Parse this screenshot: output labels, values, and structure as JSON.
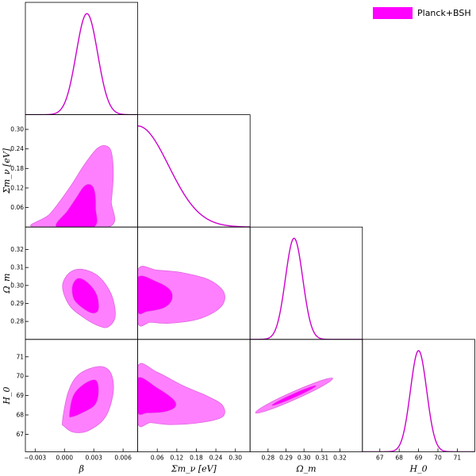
{
  "chart_data": {
    "type": "triangle-corner-plot",
    "legend": {
      "label": "Planck+BSH",
      "color": "#ff00ff",
      "placement": "top-right"
    },
    "colors": {
      "line": "#cc00cc",
      "outer_fill": "#ff80ff",
      "inner_fill": "#ff00ff",
      "edge": "#dd66dd"
    },
    "parameters": [
      {
        "key": "beta",
        "label": "β",
        "range": [
          -0.004,
          0.0075
        ],
        "ticks": [
          -0.003,
          0.0,
          0.003,
          0.006
        ],
        "tick_labels": [
          "−0.003",
          "0.000",
          "0.003",
          "0.006"
        ]
      },
      {
        "key": "sum_mnu",
        "label": "Σm_ν [eV]",
        "range": [
          0.0,
          0.345
        ],
        "ticks": [
          0.06,
          0.12,
          0.18,
          0.24,
          0.3
        ],
        "tick_labels": [
          "0.06",
          "0.12",
          "0.18",
          "0.24",
          "0.30"
        ]
      },
      {
        "key": "omega_m",
        "label": "Ω_m",
        "range": [
          0.27,
          0.3325
        ],
        "ticks": [
          0.28,
          0.29,
          0.3,
          0.31,
          0.32
        ],
        "tick_labels": [
          "0.28",
          "0.29",
          "0.30",
          "0.31",
          "0.32"
        ]
      },
      {
        "key": "H0",
        "label": "H_0",
        "range": [
          66.1,
          71.9
        ],
        "ticks": [
          67,
          68,
          69,
          70,
          71
        ],
        "tick_labels": [
          "67",
          "68",
          "69",
          "70",
          "71"
        ]
      }
    ],
    "marginals": [
      {
        "key": "beta",
        "type": "gaussian",
        "mean": 0.0023,
        "sigma": 0.0011
      },
      {
        "key": "sum_mnu",
        "type": "half-gaussian",
        "mean": 0.0,
        "sigma": 0.095
      },
      {
        "key": "omega_m",
        "type": "gaussian",
        "mean": 0.2945,
        "sigma": 0.0048
      },
      {
        "key": "H0",
        "type": "gaussian",
        "mean": 69.0,
        "sigma": 0.42
      }
    ],
    "contours_2d": [
      {
        "x": "beta",
        "y": "sum_mnu",
        "outer": [
          [
            -0.0032,
            0.0
          ],
          [
            -0.0015,
            0.04
          ],
          [
            0.0005,
            0.12
          ],
          [
            0.002,
            0.19
          ],
          [
            0.0033,
            0.24
          ],
          [
            0.0042,
            0.25
          ],
          [
            0.0048,
            0.23
          ],
          [
            0.005,
            0.16
          ],
          [
            0.0048,
            0.08
          ],
          [
            0.0045,
            0.0
          ]
        ],
        "inner": [
          [
            -0.0008,
            0.0
          ],
          [
            0.0003,
            0.05
          ],
          [
            0.0012,
            0.09
          ],
          [
            0.002,
            0.125
          ],
          [
            0.0027,
            0.13
          ],
          [
            0.0031,
            0.11
          ],
          [
            0.0032,
            0.06
          ],
          [
            0.003,
            0.0
          ]
        ]
      },
      {
        "x": "beta",
        "y": "omega_m",
        "outer": [
          [
            -0.0002,
            0.2995
          ],
          [
            0.0005,
            0.307
          ],
          [
            0.0018,
            0.309
          ],
          [
            0.0035,
            0.305
          ],
          [
            0.0048,
            0.295
          ],
          [
            0.0052,
            0.283
          ],
          [
            0.0045,
            0.277
          ],
          [
            0.0035,
            0.2775
          ],
          [
            0.002,
            0.282
          ],
          [
            0.0005,
            0.289
          ]
        ],
        "inner": [
          [
            0.0008,
            0.2995
          ],
          [
            0.0014,
            0.304
          ],
          [
            0.0024,
            0.3015
          ],
          [
            0.0033,
            0.295
          ],
          [
            0.0035,
            0.287
          ],
          [
            0.003,
            0.2845
          ],
          [
            0.0021,
            0.2865
          ],
          [
            0.001,
            0.292
          ]
        ]
      },
      {
        "x": "beta",
        "y": "H0",
        "outer": [
          [
            -0.0002,
            67.7
          ],
          [
            0.0004,
            69.2
          ],
          [
            0.0015,
            70.1
          ],
          [
            0.0035,
            70.5
          ],
          [
            0.0047,
            70.2
          ],
          [
            0.005,
            69.2
          ],
          [
            0.0042,
            67.9
          ],
          [
            0.0025,
            67.2
          ],
          [
            0.001,
            67.1
          ],
          [
            0.0,
            67.4
          ]
        ],
        "inner": [
          [
            0.0005,
            68.0
          ],
          [
            0.0009,
            69.0
          ],
          [
            0.002,
            69.6
          ],
          [
            0.0032,
            69.8
          ],
          [
            0.0035,
            69.2
          ],
          [
            0.0031,
            68.5
          ],
          [
            0.0018,
            68.1
          ],
          [
            0.0008,
            67.9
          ]
        ]
      },
      {
        "x": "sum_mnu",
        "y": "omega_m",
        "outer": [
          [
            0.0,
            0.3085
          ],
          [
            0.06,
            0.3085
          ],
          [
            0.14,
            0.307
          ],
          [
            0.22,
            0.303
          ],
          [
            0.265,
            0.296
          ],
          [
            0.255,
            0.288
          ],
          [
            0.19,
            0.2815
          ],
          [
            0.1,
            0.279
          ],
          [
            0.04,
            0.2795
          ],
          [
            0.0,
            0.2795
          ]
        ],
        "inner": [
          [
            0.0,
            0.3045
          ],
          [
            0.06,
            0.302
          ],
          [
            0.1,
            0.2975
          ],
          [
            0.105,
            0.292
          ],
          [
            0.08,
            0.2875
          ],
          [
            0.03,
            0.2855
          ],
          [
            0.0,
            0.2855
          ]
        ]
      },
      {
        "x": "sum_mnu",
        "y": "H0",
        "outer": [
          [
            0.0,
            70.5
          ],
          [
            0.06,
            70.2
          ],
          [
            0.14,
            69.5
          ],
          [
            0.21,
            69.0
          ],
          [
            0.26,
            68.5
          ],
          [
            0.26,
            67.9
          ],
          [
            0.19,
            67.6
          ],
          [
            0.1,
            67.5
          ],
          [
            0.04,
            67.6
          ],
          [
            0.0,
            67.6
          ]
        ],
        "inner": [
          [
            0.0,
            69.9
          ],
          [
            0.06,
            69.4
          ],
          [
            0.11,
            68.8
          ],
          [
            0.115,
            68.4
          ],
          [
            0.08,
            68.15
          ],
          [
            0.03,
            68.1
          ],
          [
            0.0,
            68.15
          ]
        ]
      },
      {
        "x": "omega_m",
        "y": "H0",
        "type": "ellipse",
        "cx": 0.2945,
        "cy": 69.0,
        "angle_deg": -30,
        "outer_rx": 0.0235,
        "outer_ry": 0.0022,
        "inner_rx": 0.0135,
        "inner_ry": 0.0011
      }
    ]
  }
}
